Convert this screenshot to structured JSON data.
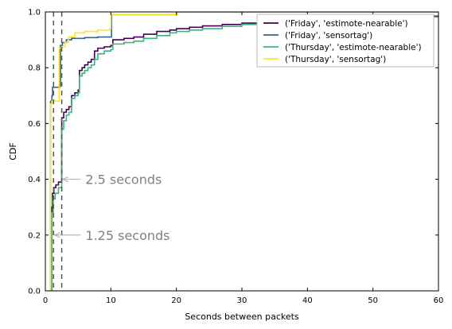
{
  "chart_data": {
    "type": "line",
    "step": true,
    "xlabel": "Seconds between packets",
    "ylabel": "CDF",
    "xlim": [
      0,
      60
    ],
    "ylim": [
      0,
      1.0
    ],
    "xticks": [
      0,
      10,
      20,
      30,
      40,
      50,
      60
    ],
    "yticks": [
      0.0,
      0.2,
      0.4,
      0.6,
      0.8,
      1.0
    ],
    "xtick_labels": [
      "0",
      "10",
      "20",
      "30",
      "40",
      "50",
      "60"
    ],
    "ytick_labels": [
      "0.0",
      "0.2",
      "0.4",
      "0.6",
      "0.8",
      "1.0"
    ],
    "grid": false,
    "legend_position": "top-right",
    "vlines": [
      {
        "x": 1.25,
        "style": "dashed",
        "color": "#555555"
      },
      {
        "x": 2.5,
        "style": "dashed",
        "color": "#555555"
      }
    ],
    "annotations": [
      {
        "text": "2.5 seconds",
        "x": 6,
        "y": 0.4,
        "arrow_to": [
          2.5,
          0.4
        ]
      },
      {
        "text": "1.25 seconds",
        "x": 6,
        "y": 0.2,
        "arrow_to": [
          1.25,
          0.2
        ]
      }
    ],
    "series": [
      {
        "name": "('Friday', 'estimote-nearable')",
        "color": "#440154",
        "points": [
          [
            0.8,
            0
          ],
          [
            1.0,
            0.3
          ],
          [
            1.1,
            0.35
          ],
          [
            1.3,
            0.37
          ],
          [
            1.6,
            0.38
          ],
          [
            2.0,
            0.39
          ],
          [
            2.5,
            0.4
          ],
          [
            2.5,
            0.62
          ],
          [
            2.8,
            0.64
          ],
          [
            3.2,
            0.65
          ],
          [
            3.6,
            0.66
          ],
          [
            4.0,
            0.7
          ],
          [
            4.5,
            0.71
          ],
          [
            5.0,
            0.72
          ],
          [
            5.2,
            0.79
          ],
          [
            5.6,
            0.8
          ],
          [
            6.0,
            0.81
          ],
          [
            6.5,
            0.82
          ],
          [
            7.0,
            0.83
          ],
          [
            7.5,
            0.86
          ],
          [
            8.0,
            0.87
          ],
          [
            9.0,
            0.875
          ],
          [
            10.0,
            0.88
          ],
          [
            10.3,
            0.9
          ],
          [
            12,
            0.905
          ],
          [
            13.5,
            0.91
          ],
          [
            15,
            0.92
          ],
          [
            17,
            0.93
          ],
          [
            19,
            0.935
          ],
          [
            20,
            0.94
          ],
          [
            22,
            0.945
          ],
          [
            24,
            0.95
          ],
          [
            27,
            0.955
          ],
          [
            30,
            0.96
          ],
          [
            33,
            0.965
          ],
          [
            36,
            0.97
          ],
          [
            40,
            0.975
          ],
          [
            45,
            0.98
          ],
          [
            50,
            0.983
          ],
          [
            55,
            0.985
          ],
          [
            60,
            0.988
          ]
        ]
      },
      {
        "name": "('Friday', 'sensortag')",
        "color": "#31688e",
        "points": [
          [
            0.7,
            0
          ],
          [
            0.8,
            0.68
          ],
          [
            1.0,
            0.7
          ],
          [
            1.1,
            0.73
          ],
          [
            2.2,
            0.735
          ],
          [
            2.3,
            0.88
          ],
          [
            2.6,
            0.89
          ],
          [
            3.2,
            0.9
          ],
          [
            4.0,
            0.905
          ],
          [
            6,
            0.908
          ],
          [
            8,
            0.91
          ],
          [
            10,
            0.91
          ],
          [
            10.1,
            0.99
          ],
          [
            20,
            0.99
          ],
          [
            20.1,
            1.0
          ],
          [
            60,
            1.0
          ]
        ]
      },
      {
        "name": "('Thursday', 'estimote-nearable')",
        "color": "#35b779",
        "points": [
          [
            0.8,
            0
          ],
          [
            1.0,
            0.28
          ],
          [
            1.2,
            0.33
          ],
          [
            1.5,
            0.35
          ],
          [
            2.0,
            0.37
          ],
          [
            2.5,
            0.38
          ],
          [
            2.5,
            0.58
          ],
          [
            2.8,
            0.61
          ],
          [
            3.2,
            0.63
          ],
          [
            3.6,
            0.64
          ],
          [
            4.0,
            0.69
          ],
          [
            4.5,
            0.7
          ],
          [
            5.0,
            0.71
          ],
          [
            5.2,
            0.77
          ],
          [
            5.6,
            0.78
          ],
          [
            6.0,
            0.79
          ],
          [
            6.5,
            0.8
          ],
          [
            7.0,
            0.81
          ],
          [
            7.5,
            0.83
          ],
          [
            8.0,
            0.85
          ],
          [
            9.0,
            0.86
          ],
          [
            10.0,
            0.865
          ],
          [
            10.3,
            0.885
          ],
          [
            12,
            0.89
          ],
          [
            13.5,
            0.895
          ],
          [
            15,
            0.905
          ],
          [
            17,
            0.915
          ],
          [
            19,
            0.925
          ],
          [
            20,
            0.93
          ],
          [
            22,
            0.935
          ],
          [
            24,
            0.94
          ],
          [
            27,
            0.948
          ],
          [
            30,
            0.955
          ],
          [
            33,
            0.96
          ],
          [
            36,
            0.965
          ],
          [
            40,
            0.97
          ],
          [
            45,
            0.975
          ],
          [
            50,
            0.978
          ],
          [
            55,
            0.982
          ],
          [
            60,
            0.985
          ]
        ]
      },
      {
        "name": "('Thursday', 'sensortag')",
        "color": "#fde725",
        "points": [
          [
            0.6,
            0
          ],
          [
            0.8,
            0.67
          ],
          [
            1.0,
            0.68
          ],
          [
            2.0,
            0.68
          ],
          [
            2.1,
            0.87
          ],
          [
            2.5,
            0.875
          ],
          [
            3.0,
            0.89
          ],
          [
            3.5,
            0.91
          ],
          [
            4.5,
            0.925
          ],
          [
            6,
            0.93
          ],
          [
            8,
            0.935
          ],
          [
            9.8,
            0.94
          ],
          [
            10,
            0.99
          ],
          [
            20,
            0.99
          ],
          [
            20.1,
            1.0
          ],
          [
            60,
            1.0
          ]
        ]
      }
    ]
  }
}
